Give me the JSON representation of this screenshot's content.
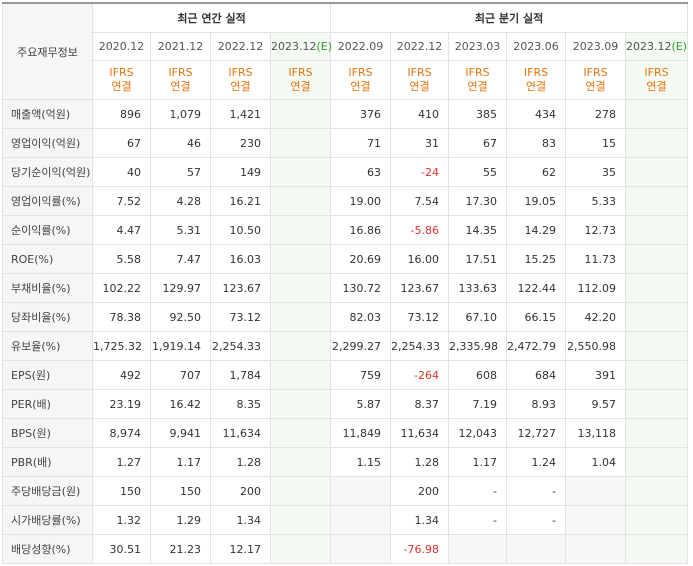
{
  "table": {
    "corner": "주요재무정보",
    "groups": [
      {
        "title": "최근 연간 실적",
        "columns": [
          {
            "date": "2020.12",
            "basis": [
              "IFRS",
              "연결"
            ]
          },
          {
            "date": "2021.12",
            "basis": [
              "IFRS",
              "연결"
            ]
          },
          {
            "date": "2022.12",
            "basis": [
              "IFRS",
              "연결"
            ]
          },
          {
            "date": "2023.12",
            "estimate": "(E)",
            "basis": [
              "IFRS",
              "연결"
            ]
          }
        ]
      },
      {
        "title": "최근 분기 실적",
        "columns": [
          {
            "date": "2022.09",
            "basis": [
              "IFRS",
              "연결"
            ]
          },
          {
            "date": "2022.12",
            "basis": [
              "IFRS",
              "연결"
            ]
          },
          {
            "date": "2023.03",
            "basis": [
              "IFRS",
              "연결"
            ]
          },
          {
            "date": "2023.06",
            "basis": [
              "IFRS",
              "연결"
            ]
          },
          {
            "date": "2023.09",
            "basis": [
              "IFRS",
              "연결"
            ]
          },
          {
            "date": "2023.12",
            "estimate": "(E)",
            "basis": [
              "IFRS",
              "연결"
            ]
          }
        ]
      }
    ],
    "sections": [
      {
        "rows": [
          {
            "label": "매출액(억원)",
            "values": [
              "896",
              "1,079",
              "1,421",
              null,
              "376",
              "410",
              "385",
              "434",
              "278",
              null
            ]
          },
          {
            "label": "영업이익(억원)",
            "values": [
              "67",
              "46",
              "230",
              null,
              "71",
              "31",
              "67",
              "83",
              "15",
              null
            ]
          },
          {
            "label": "당기순이익(억원)",
            "values": [
              "40",
              "57",
              "149",
              null,
              "63",
              "-24",
              "55",
              "62",
              "35",
              null
            ]
          }
        ]
      },
      {
        "rows": [
          {
            "label": "영업이익률(%)",
            "values": [
              "7.52",
              "4.28",
              "16.21",
              null,
              "19.00",
              "7.54",
              "17.30",
              "19.05",
              "5.33",
              null
            ]
          },
          {
            "label": "순이익률(%)",
            "values": [
              "4.47",
              "5.31",
              "10.50",
              null,
              "16.86",
              "-5.86",
              "14.35",
              "14.29",
              "12.73",
              null
            ]
          },
          {
            "label": "ROE(%)",
            "values": [
              "5.58",
              "7.47",
              "16.03",
              null,
              "20.69",
              "16.00",
              "17.51",
              "15.25",
              "11.73",
              null
            ]
          }
        ]
      },
      {
        "rows": [
          {
            "label": "부채비율(%)",
            "values": [
              "102.22",
              "129.97",
              "123.67",
              null,
              "130.72",
              "123.67",
              "133.63",
              "122.44",
              "112.09",
              null
            ]
          },
          {
            "label": "당좌비율(%)",
            "values": [
              "78.38",
              "92.50",
              "73.12",
              null,
              "82.03",
              "73.12",
              "67.10",
              "66.15",
              "42.20",
              null
            ]
          },
          {
            "label": "유보율(%)",
            "values": [
              "1,725.32",
              "1,919.14",
              "2,254.33",
              null,
              "2,299.27",
              "2,254.33",
              "2,335.98",
              "2,472.79",
              "2,550.98",
              null
            ]
          }
        ]
      },
      {
        "rows": [
          {
            "label": "EPS(원)",
            "values": [
              "492",
              "707",
              "1,784",
              null,
              "759",
              "-264",
              "608",
              "684",
              "391",
              null
            ]
          },
          {
            "label": "PER(배)",
            "values": [
              "23.19",
              "16.42",
              "8.35",
              null,
              "5.87",
              "8.37",
              "7.19",
              "8.93",
              "9.57",
              null
            ]
          },
          {
            "label": "BPS(원)",
            "values": [
              "8,974",
              "9,941",
              "11,634",
              null,
              "11,849",
              "11,634",
              "12,043",
              "12,727",
              "13,118",
              null
            ]
          },
          {
            "label": "PBR(배)",
            "values": [
              "1.27",
              "1.17",
              "1.28",
              null,
              "1.15",
              "1.28",
              "1.17",
              "1.24",
              "1.04",
              null
            ]
          }
        ]
      },
      {
        "rows": [
          {
            "label": "주당배당금(원)",
            "values": [
              "150",
              "150",
              "200",
              null,
              null,
              "200",
              "-",
              "-",
              null,
              null
            ]
          },
          {
            "label": "시가배당률(%)",
            "values": [
              "1.32",
              "1.29",
              "1.34",
              null,
              null,
              "1.34",
              "-",
              "-",
              null,
              null
            ]
          },
          {
            "label": "배당성향(%)",
            "values": [
              "30.51",
              "21.23",
              "12.17",
              null,
              null,
              "-76.98",
              null,
              null,
              null,
              null
            ]
          }
        ]
      }
    ]
  }
}
